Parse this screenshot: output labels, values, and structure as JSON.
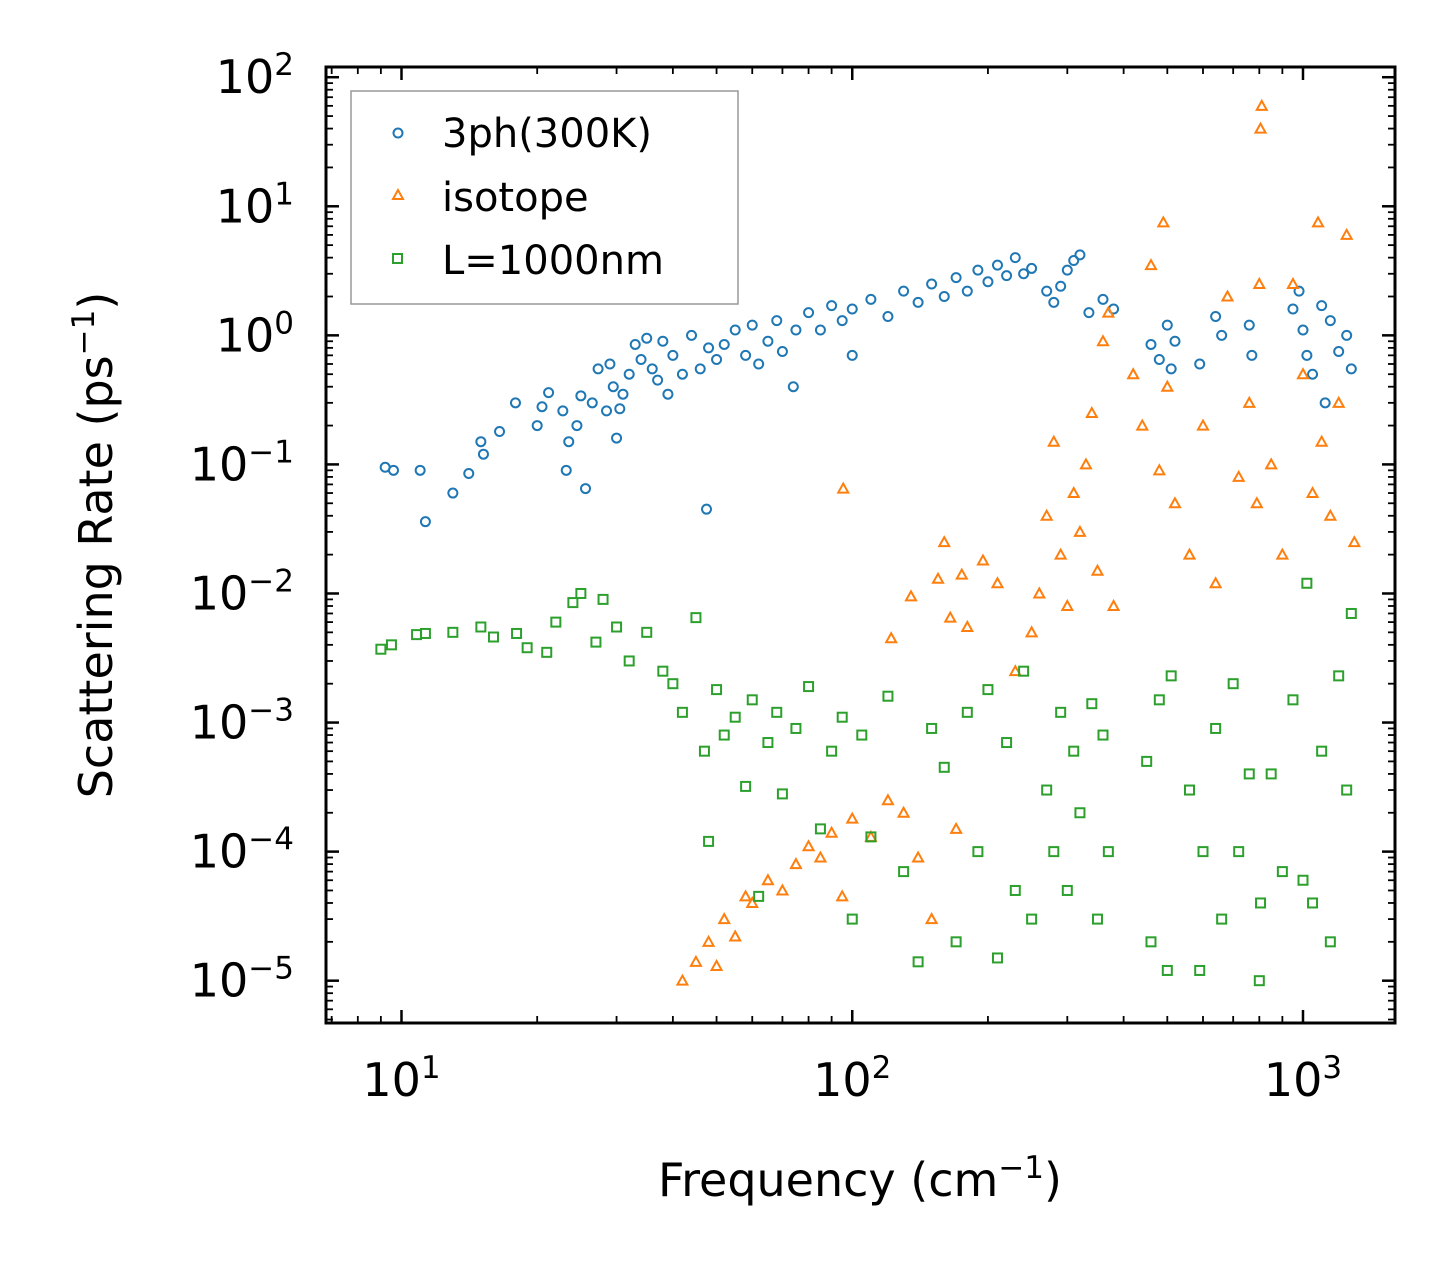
{
  "chart_data": {
    "type": "scatter",
    "xscale": "log",
    "yscale": "log",
    "xlabel": "Frequency (cm",
    "xlabel_sup": "−1",
    "xlabel_tail": ")",
    "ylabel": "Scattering Rate (ps",
    "ylabel_sup": "−1",
    "ylabel_tail": ")",
    "xlim": [
      6.8,
      1600
    ],
    "ylim": [
      4.7e-06,
      120
    ],
    "x_ticks": [
      {
        "value": 10,
        "base": "10",
        "exp": "1"
      },
      {
        "value": 100,
        "base": "10",
        "exp": "2"
      },
      {
        "value": 1000,
        "base": "10",
        "exp": "3"
      }
    ],
    "y_ticks": [
      {
        "value": 100,
        "base": "10",
        "exp": "2"
      },
      {
        "value": 10,
        "base": "10",
        "exp": "1"
      },
      {
        "value": 1,
        "base": "10",
        "exp": "0"
      },
      {
        "value": 0.1,
        "base": "10",
        "exp": "−1"
      },
      {
        "value": 0.01,
        "base": "10",
        "exp": "−2"
      },
      {
        "value": 0.001,
        "base": "10",
        "exp": "−3"
      },
      {
        "value": 0.0001,
        "base": "10",
        "exp": "−4"
      },
      {
        "value": 1e-05,
        "base": "10",
        "exp": "−5"
      }
    ],
    "legend_position": "top-left",
    "series": [
      {
        "name": "3ph(300K)",
        "marker": "circle",
        "color": "#1f77b4",
        "points": [
          [
            9.2,
            0.095
          ],
          [
            9.6,
            0.09
          ],
          [
            11,
            0.09
          ],
          [
            11.3,
            0.036
          ],
          [
            13,
            0.06
          ],
          [
            14.1,
            0.085
          ],
          [
            15,
            0.15
          ],
          [
            15.2,
            0.12
          ],
          [
            16.5,
            0.18
          ],
          [
            17.9,
            0.3
          ],
          [
            20,
            0.2
          ],
          [
            20.5,
            0.28
          ],
          [
            21.2,
            0.36
          ],
          [
            22.8,
            0.26
          ],
          [
            23.2,
            0.09
          ],
          [
            23.5,
            0.15
          ],
          [
            24.5,
            0.2
          ],
          [
            25,
            0.34
          ],
          [
            25.6,
            0.065
          ],
          [
            26.5,
            0.3
          ],
          [
            27.3,
            0.55
          ],
          [
            28.5,
            0.26
          ],
          [
            29,
            0.6
          ],
          [
            29.5,
            0.4
          ],
          [
            30,
            0.16
          ],
          [
            30.5,
            0.27
          ],
          [
            31,
            0.35
          ],
          [
            32,
            0.5
          ],
          [
            33,
            0.85
          ],
          [
            34,
            0.65
          ],
          [
            35,
            0.95
          ],
          [
            36,
            0.55
          ],
          [
            37,
            0.45
          ],
          [
            38,
            0.9
          ],
          [
            39,
            0.35
          ],
          [
            40,
            0.7
          ],
          [
            42,
            0.5
          ],
          [
            44,
            1.0
          ],
          [
            46,
            0.55
          ],
          [
            47.5,
            0.045
          ],
          [
            48,
            0.8
          ],
          [
            50,
            0.65
          ],
          [
            52,
            0.85
          ],
          [
            55,
            1.1
          ],
          [
            58,
            0.7
          ],
          [
            60,
            1.2
          ],
          [
            62,
            0.6
          ],
          [
            65,
            0.9
          ],
          [
            68,
            1.3
          ],
          [
            70,
            0.75
          ],
          [
            74,
            0.4
          ],
          [
            75,
            1.1
          ],
          [
            80,
            1.5
          ],
          [
            85,
            1.1
          ],
          [
            90,
            1.7
          ],
          [
            95,
            1.3
          ],
          [
            100,
            0.7
          ],
          [
            100,
            1.6
          ],
          [
            110,
            1.9
          ],
          [
            120,
            1.4
          ],
          [
            130,
            2.2
          ],
          [
            140,
            1.8
          ],
          [
            150,
            2.5
          ],
          [
            160,
            2.0
          ],
          [
            170,
            2.8
          ],
          [
            180,
            2.2
          ],
          [
            190,
            3.2
          ],
          [
            200,
            2.6
          ],
          [
            210,
            3.5
          ],
          [
            220,
            2.9
          ],
          [
            230,
            4.0
          ],
          [
            240,
            3.0
          ],
          [
            250,
            3.3
          ],
          [
            270,
            2.2
          ],
          [
            280,
            1.8
          ],
          [
            290,
            2.4
          ],
          [
            300,
            3.2
          ],
          [
            310,
            3.8
          ],
          [
            320,
            4.2
          ],
          [
            335,
            1.5
          ],
          [
            360,
            1.9
          ],
          [
            380,
            1.6
          ],
          [
            460,
            0.85
          ],
          [
            480,
            0.65
          ],
          [
            500,
            1.2
          ],
          [
            510,
            0.55
          ],
          [
            520,
            0.9
          ],
          [
            590,
            0.6
          ],
          [
            640,
            1.4
          ],
          [
            660,
            1.0
          ],
          [
            760,
            1.2
          ],
          [
            770,
            0.7
          ],
          [
            950,
            1.6
          ],
          [
            980,
            2.2
          ],
          [
            1000,
            1.1
          ],
          [
            1020,
            0.7
          ],
          [
            1050,
            0.5
          ],
          [
            1100,
            1.7
          ],
          [
            1120,
            0.3
          ],
          [
            1150,
            1.3
          ],
          [
            1200,
            0.75
          ],
          [
            1250,
            1.0
          ],
          [
            1280,
            0.55
          ]
        ]
      },
      {
        "name": "isotope",
        "marker": "triangle",
        "color": "#ff7f0e",
        "points": [
          [
            42,
            1e-05
          ],
          [
            45,
            1.4e-05
          ],
          [
            48,
            2e-05
          ],
          [
            50,
            1.3e-05
          ],
          [
            52,
            3e-05
          ],
          [
            55,
            2.2e-05
          ],
          [
            58,
            4.5e-05
          ],
          [
            60,
            4e-05
          ],
          [
            65,
            6e-05
          ],
          [
            70,
            5e-05
          ],
          [
            75,
            8e-05
          ],
          [
            80,
            0.00011
          ],
          [
            85,
            9e-05
          ],
          [
            90,
            0.00014
          ],
          [
            95,
            4.5e-05
          ],
          [
            95.5,
            0.065
          ],
          [
            100,
            0.00018
          ],
          [
            110,
            0.00013
          ],
          [
            120,
            0.00025
          ],
          [
            122,
            0.0045
          ],
          [
            130,
            0.0002
          ],
          [
            135,
            0.0095
          ],
          [
            140,
            9e-05
          ],
          [
            150,
            3e-05
          ],
          [
            155,
            0.013
          ],
          [
            160,
            0.025
          ],
          [
            165,
            0.0065
          ],
          [
            170,
            0.00015
          ],
          [
            175,
            0.014
          ],
          [
            180,
            0.0055
          ],
          [
            195,
            0.018
          ],
          [
            210,
            0.012
          ],
          [
            230,
            0.0025
          ],
          [
            250,
            0.005
          ],
          [
            260,
            0.01
          ],
          [
            270,
            0.04
          ],
          [
            280,
            0.15
          ],
          [
            290,
            0.02
          ],
          [
            300,
            0.008
          ],
          [
            310,
            0.06
          ],
          [
            320,
            0.03
          ],
          [
            330,
            0.1
          ],
          [
            340,
            0.25
          ],
          [
            350,
            0.015
          ],
          [
            360,
            0.9
          ],
          [
            370,
            1.5
          ],
          [
            380,
            0.008
          ],
          [
            420,
            0.5
          ],
          [
            440,
            0.2
          ],
          [
            460,
            3.5
          ],
          [
            480,
            0.09
          ],
          [
            490,
            7.5
          ],
          [
            500,
            0.4
          ],
          [
            520,
            0.05
          ],
          [
            560,
            0.02
          ],
          [
            600,
            0.2
          ],
          [
            640,
            0.012
          ],
          [
            680,
            2.0
          ],
          [
            720,
            0.08
          ],
          [
            760,
            0.3
          ],
          [
            790,
            0.05
          ],
          [
            800,
            2.5
          ],
          [
            805,
            40
          ],
          [
            810,
            60
          ],
          [
            850,
            0.1
          ],
          [
            900,
            0.02
          ],
          [
            950,
            2.5
          ],
          [
            1000,
            0.5
          ],
          [
            1050,
            0.06
          ],
          [
            1080,
            7.5
          ],
          [
            1100,
            0.15
          ],
          [
            1150,
            0.04
          ],
          [
            1200,
            0.3
          ],
          [
            1250,
            6.0
          ],
          [
            1300,
            0.025
          ]
        ]
      },
      {
        "name": "L=1000nm",
        "marker": "square",
        "color": "#2ca02c",
        "points": [
          [
            9,
            0.0037
          ],
          [
            9.5,
            0.004
          ],
          [
            10.8,
            0.0048
          ],
          [
            11.3,
            0.0049
          ],
          [
            13,
            0.005
          ],
          [
            15,
            0.0055
          ],
          [
            16,
            0.0046
          ],
          [
            18,
            0.0049
          ],
          [
            19,
            0.0038
          ],
          [
            21,
            0.0035
          ],
          [
            22,
            0.006
          ],
          [
            24,
            0.0085
          ],
          [
            25,
            0.01
          ],
          [
            27,
            0.0042
          ],
          [
            28,
            0.009
          ],
          [
            30,
            0.0055
          ],
          [
            32,
            0.003
          ],
          [
            35,
            0.005
          ],
          [
            38,
            0.0025
          ],
          [
            40,
            0.002
          ],
          [
            42,
            0.0012
          ],
          [
            45,
            0.0065
          ],
          [
            47,
            0.0006
          ],
          [
            48,
            0.00012
          ],
          [
            50,
            0.0018
          ],
          [
            52,
            0.0008
          ],
          [
            55,
            0.0011
          ],
          [
            58,
            0.00032
          ],
          [
            60,
            0.0015
          ],
          [
            62,
            4.5e-05
          ],
          [
            65,
            0.0007
          ],
          [
            68,
            0.0012
          ],
          [
            70,
            0.00028
          ],
          [
            75,
            0.0009
          ],
          [
            80,
            0.0019
          ],
          [
            85,
            0.00015
          ],
          [
            90,
            0.0006
          ],
          [
            95,
            0.0011
          ],
          [
            100,
            3e-05
          ],
          [
            105,
            0.0008
          ],
          [
            110,
            0.00013
          ],
          [
            120,
            0.0016
          ],
          [
            130,
            7e-05
          ],
          [
            140,
            1.4e-05
          ],
          [
            150,
            0.0009
          ],
          [
            160,
            0.00045
          ],
          [
            170,
            2e-05
          ],
          [
            180,
            0.0012
          ],
          [
            190,
            0.0001
          ],
          [
            200,
            0.0018
          ],
          [
            210,
            1.5e-05
          ],
          [
            220,
            0.0007
          ],
          [
            230,
            5e-05
          ],
          [
            240,
            0.0025
          ],
          [
            250,
            3e-05
          ],
          [
            270,
            0.0003
          ],
          [
            280,
            0.0001
          ],
          [
            290,
            0.0012
          ],
          [
            300,
            5e-05
          ],
          [
            310,
            0.0006
          ],
          [
            320,
            0.0002
          ],
          [
            340,
            0.0014
          ],
          [
            350,
            3e-05
          ],
          [
            360,
            0.0008
          ],
          [
            370,
            0.0001
          ],
          [
            450,
            0.0005
          ],
          [
            460,
            2e-05
          ],
          [
            480,
            0.0015
          ],
          [
            500,
            1.2e-05
          ],
          [
            510,
            0.0023
          ],
          [
            560,
            0.0003
          ],
          [
            590,
            1.2e-05
          ],
          [
            600,
            0.0001
          ],
          [
            640,
            0.0009
          ],
          [
            660,
            3e-05
          ],
          [
            700,
            0.002
          ],
          [
            720,
            0.0001
          ],
          [
            760,
            0.0004
          ],
          [
            800,
            1e-05
          ],
          [
            805,
            4e-05
          ],
          [
            850,
            0.0004
          ],
          [
            900,
            7e-05
          ],
          [
            950,
            0.0015
          ],
          [
            1000,
            6e-05
          ],
          [
            1020,
            0.012
          ],
          [
            1050,
            4e-05
          ],
          [
            1100,
            0.0006
          ],
          [
            1150,
            2e-05
          ],
          [
            1200,
            0.0023
          ],
          [
            1250,
            0.0003
          ],
          [
            1280,
            0.007
          ]
        ]
      }
    ]
  }
}
